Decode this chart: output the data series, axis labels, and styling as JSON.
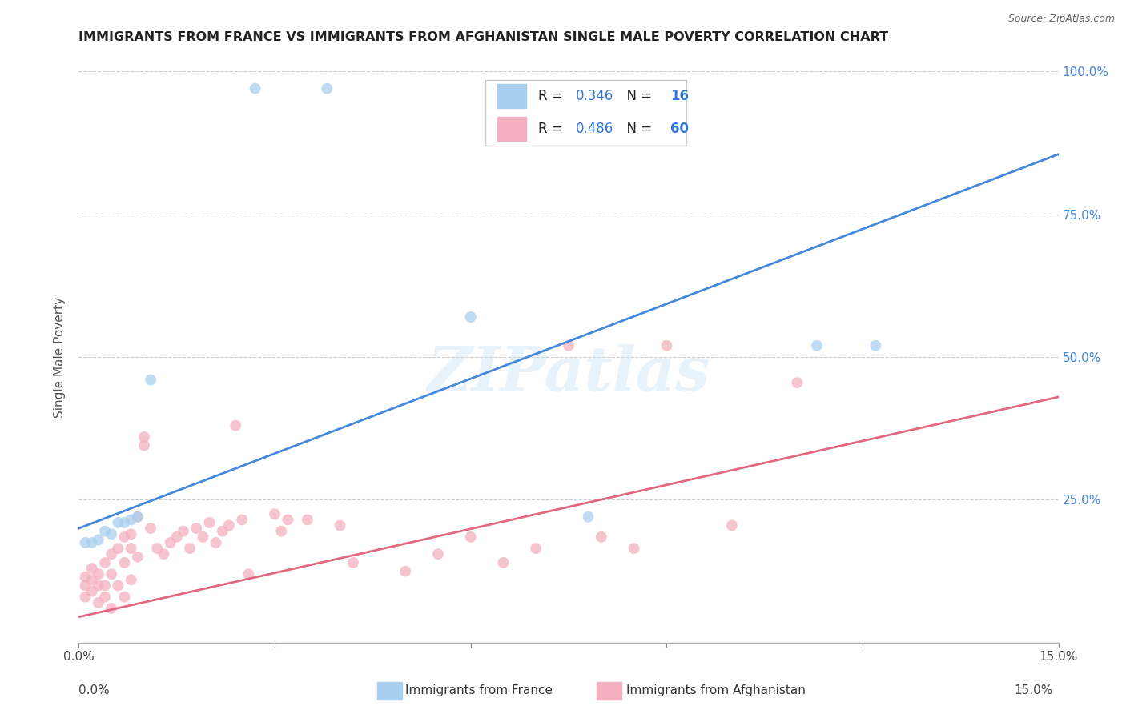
{
  "title": "IMMIGRANTS FROM FRANCE VS IMMIGRANTS FROM AFGHANISTAN SINGLE MALE POVERTY CORRELATION CHART",
  "source": "Source: ZipAtlas.com",
  "xlabel_france": "Immigrants from France",
  "xlabel_afghanistan": "Immigrants from Afghanistan",
  "ylabel": "Single Male Poverty",
  "xlim": [
    0,
    0.15
  ],
  "ylim": [
    0,
    1.0
  ],
  "r_france": 0.346,
  "n_france": 16,
  "r_afghanistan": 0.486,
  "n_afghanistan": 60,
  "color_france": "#a8cff0",
  "color_afghanistan": "#f4b0c0",
  "line_color_france": "#4488dd",
  "line_color_afghanistan": "#e06880",
  "watermark": "ZIPatlas",
  "blue_line_x0": 0.0,
  "blue_line_y0": 0.2,
  "blue_line_x1": 0.15,
  "blue_line_y1": 0.855,
  "pink_line_x0": 0.0,
  "pink_line_y0": 0.045,
  "pink_line_x1": 0.15,
  "pink_line_y1": 0.43,
  "france_x": [
    0.001,
    0.002,
    0.003,
    0.004,
    0.005,
    0.006,
    0.007,
    0.008,
    0.009,
    0.011,
    0.027,
    0.038,
    0.06,
    0.078,
    0.113,
    0.122
  ],
  "france_y": [
    0.175,
    0.175,
    0.18,
    0.195,
    0.19,
    0.21,
    0.21,
    0.215,
    0.22,
    0.46,
    0.97,
    0.97,
    0.57,
    0.22,
    0.52,
    0.52
  ],
  "afghanistan_x": [
    0.001,
    0.001,
    0.001,
    0.002,
    0.002,
    0.002,
    0.003,
    0.003,
    0.003,
    0.004,
    0.004,
    0.004,
    0.005,
    0.005,
    0.005,
    0.006,
    0.006,
    0.007,
    0.007,
    0.007,
    0.008,
    0.008,
    0.008,
    0.009,
    0.009,
    0.01,
    0.01,
    0.011,
    0.012,
    0.013,
    0.014,
    0.015,
    0.016,
    0.017,
    0.018,
    0.019,
    0.02,
    0.021,
    0.022,
    0.023,
    0.024,
    0.025,
    0.026,
    0.03,
    0.031,
    0.032,
    0.035,
    0.04,
    0.042,
    0.05,
    0.055,
    0.06,
    0.065,
    0.07,
    0.075,
    0.08,
    0.085,
    0.09,
    0.1,
    0.11
  ],
  "afghanistan_y": [
    0.1,
    0.115,
    0.08,
    0.13,
    0.11,
    0.09,
    0.12,
    0.1,
    0.07,
    0.14,
    0.1,
    0.08,
    0.155,
    0.12,
    0.06,
    0.165,
    0.1,
    0.185,
    0.14,
    0.08,
    0.19,
    0.165,
    0.11,
    0.22,
    0.15,
    0.345,
    0.36,
    0.2,
    0.165,
    0.155,
    0.175,
    0.185,
    0.195,
    0.165,
    0.2,
    0.185,
    0.21,
    0.175,
    0.195,
    0.205,
    0.38,
    0.215,
    0.12,
    0.225,
    0.195,
    0.215,
    0.215,
    0.205,
    0.14,
    0.125,
    0.155,
    0.185,
    0.14,
    0.165,
    0.52,
    0.185,
    0.165,
    0.52,
    0.205,
    0.455
  ]
}
